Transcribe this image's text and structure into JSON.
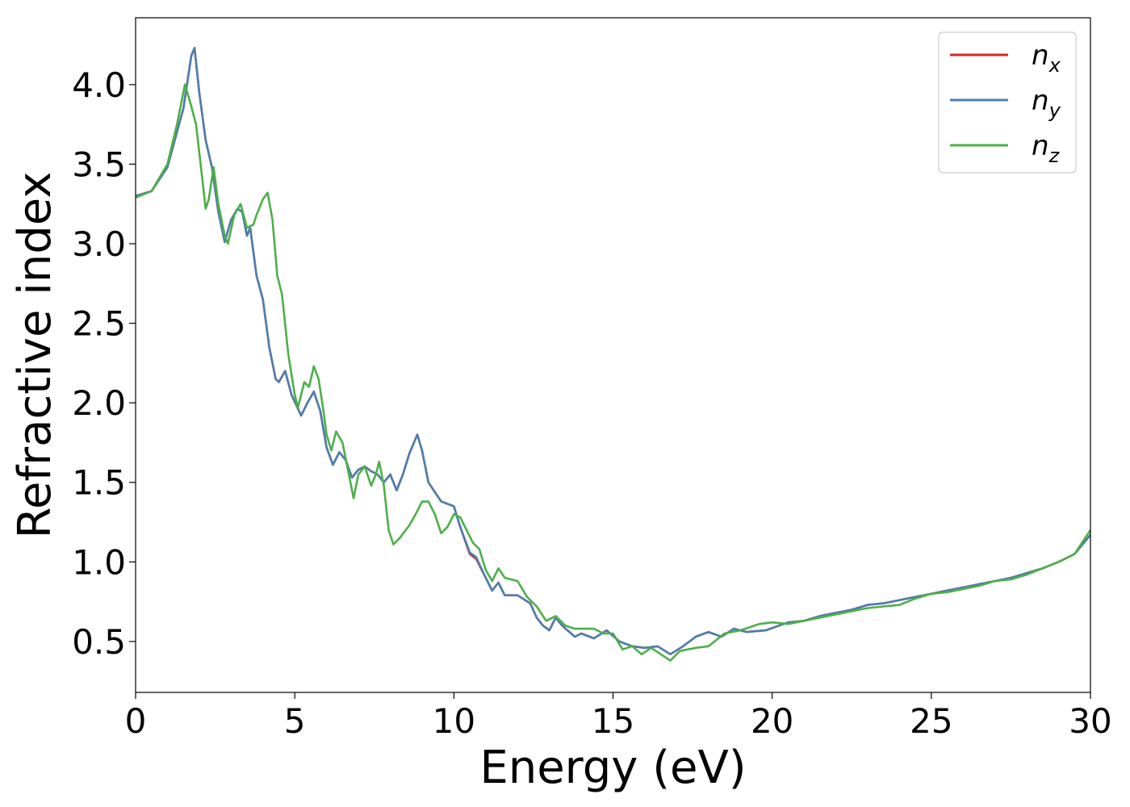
{
  "chart_data": {
    "type": "line",
    "title": "",
    "xlabel": "Energy (eV)",
    "ylabel": "Refractive index",
    "xlim": [
      0,
      30
    ],
    "ylim": [
      0.18,
      4.42
    ],
    "xticks": [
      0,
      5,
      10,
      15,
      20,
      25,
      30
    ],
    "yticks": [
      0.5,
      1.0,
      1.5,
      2.0,
      2.5,
      3.0,
      3.5,
      4.0
    ],
    "xtick_labels": [
      "0",
      "5",
      "10",
      "15",
      "20",
      "25",
      "30"
    ],
    "ytick_labels": [
      "0.5",
      "1.0",
      "1.5",
      "2.0",
      "2.5",
      "3.0",
      "3.5",
      "4.0"
    ],
    "grid": false,
    "legend": {
      "position": "top-right"
    },
    "series": [
      {
        "name": "n_x",
        "base": "n",
        "sub": "x",
        "color": "#d62728",
        "points": [
          [
            0,
            3.3
          ],
          [
            0.5,
            3.33
          ],
          [
            1.0,
            3.48
          ],
          [
            1.5,
            3.85
          ],
          [
            1.75,
            4.18
          ],
          [
            1.85,
            4.23
          ],
          [
            2.0,
            3.95
          ],
          [
            2.2,
            3.65
          ],
          [
            2.4,
            3.48
          ],
          [
            2.6,
            3.2
          ],
          [
            2.8,
            3.01
          ],
          [
            3.0,
            3.15
          ],
          [
            3.2,
            3.22
          ],
          [
            3.35,
            3.2
          ],
          [
            3.5,
            3.05
          ],
          [
            3.6,
            3.1
          ],
          [
            3.8,
            2.8
          ],
          [
            4.0,
            2.65
          ],
          [
            4.2,
            2.35
          ],
          [
            4.4,
            2.15
          ],
          [
            4.5,
            2.13
          ],
          [
            4.7,
            2.2
          ],
          [
            4.9,
            2.05
          ],
          [
            5.2,
            1.92
          ],
          [
            5.4,
            2.0
          ],
          [
            5.6,
            2.07
          ],
          [
            5.8,
            1.95
          ],
          [
            6.0,
            1.72
          ],
          [
            6.2,
            1.61
          ],
          [
            6.4,
            1.69
          ],
          [
            6.6,
            1.64
          ],
          [
            6.8,
            1.53
          ],
          [
            7.0,
            1.58
          ],
          [
            7.2,
            1.6
          ],
          [
            7.4,
            1.57
          ],
          [
            7.6,
            1.55
          ],
          [
            7.8,
            1.5
          ],
          [
            8.0,
            1.55
          ],
          [
            8.2,
            1.45
          ],
          [
            8.4,
            1.55
          ],
          [
            8.6,
            1.68
          ],
          [
            8.85,
            1.8
          ],
          [
            9.0,
            1.7
          ],
          [
            9.2,
            1.5
          ],
          [
            9.4,
            1.44
          ],
          [
            9.6,
            1.38
          ],
          [
            10.0,
            1.35
          ],
          [
            10.2,
            1.22
          ],
          [
            10.5,
            1.05
          ],
          [
            10.7,
            1.02
          ],
          [
            11.0,
            0.9
          ],
          [
            11.2,
            0.82
          ],
          [
            11.4,
            0.87
          ],
          [
            11.6,
            0.79
          ],
          [
            12.0,
            0.79
          ],
          [
            12.4,
            0.74
          ],
          [
            12.6,
            0.65
          ],
          [
            12.8,
            0.6
          ],
          [
            13.0,
            0.57
          ],
          [
            13.2,
            0.65
          ],
          [
            13.4,
            0.6
          ],
          [
            13.8,
            0.53
          ],
          [
            14.0,
            0.55
          ],
          [
            14.4,
            0.52
          ],
          [
            14.8,
            0.57
          ],
          [
            15.2,
            0.5
          ],
          [
            15.6,
            0.47
          ],
          [
            16.0,
            0.46
          ],
          [
            16.4,
            0.47
          ],
          [
            16.8,
            0.42
          ],
          [
            17.2,
            0.47
          ],
          [
            17.6,
            0.53
          ],
          [
            18.0,
            0.56
          ],
          [
            18.4,
            0.53
          ],
          [
            18.8,
            0.58
          ],
          [
            19.2,
            0.56
          ],
          [
            19.8,
            0.57
          ],
          [
            20.5,
            0.62
          ],
          [
            21.0,
            0.63
          ],
          [
            21.5,
            0.66
          ],
          [
            22.0,
            0.68
          ],
          [
            22.5,
            0.7
          ],
          [
            23.0,
            0.73
          ],
          [
            23.5,
            0.74
          ],
          [
            24.0,
            0.76
          ],
          [
            24.5,
            0.78
          ],
          [
            25.0,
            0.8
          ],
          [
            25.5,
            0.82
          ],
          [
            26.0,
            0.84
          ],
          [
            26.5,
            0.86
          ],
          [
            27.0,
            0.88
          ],
          [
            27.5,
            0.9
          ],
          [
            28.0,
            0.93
          ],
          [
            28.5,
            0.96
          ],
          [
            29.0,
            1.0
          ],
          [
            29.5,
            1.05
          ],
          [
            30.0,
            1.17
          ]
        ]
      },
      {
        "name": "n_y",
        "base": "n",
        "sub": "y",
        "color": "#4c7fad",
        "points": [
          [
            0,
            3.3
          ],
          [
            0.5,
            3.33
          ],
          [
            1.0,
            3.48
          ],
          [
            1.5,
            3.85
          ],
          [
            1.75,
            4.18
          ],
          [
            1.85,
            4.23
          ],
          [
            2.0,
            3.95
          ],
          [
            2.2,
            3.65
          ],
          [
            2.4,
            3.48
          ],
          [
            2.6,
            3.2
          ],
          [
            2.8,
            3.01
          ],
          [
            3.0,
            3.15
          ],
          [
            3.2,
            3.22
          ],
          [
            3.35,
            3.2
          ],
          [
            3.5,
            3.05
          ],
          [
            3.6,
            3.1
          ],
          [
            3.8,
            2.8
          ],
          [
            4.0,
            2.65
          ],
          [
            4.2,
            2.35
          ],
          [
            4.4,
            2.15
          ],
          [
            4.5,
            2.13
          ],
          [
            4.7,
            2.2
          ],
          [
            4.9,
            2.05
          ],
          [
            5.2,
            1.92
          ],
          [
            5.4,
            2.0
          ],
          [
            5.6,
            2.07
          ],
          [
            5.8,
            1.95
          ],
          [
            6.0,
            1.72
          ],
          [
            6.2,
            1.61
          ],
          [
            6.4,
            1.69
          ],
          [
            6.6,
            1.64
          ],
          [
            6.8,
            1.53
          ],
          [
            7.0,
            1.58
          ],
          [
            7.2,
            1.6
          ],
          [
            7.4,
            1.57
          ],
          [
            7.6,
            1.55
          ],
          [
            7.8,
            1.5
          ],
          [
            8.0,
            1.55
          ],
          [
            8.2,
            1.45
          ],
          [
            8.4,
            1.55
          ],
          [
            8.6,
            1.68
          ],
          [
            8.85,
            1.8
          ],
          [
            9.0,
            1.7
          ],
          [
            9.2,
            1.5
          ],
          [
            9.4,
            1.44
          ],
          [
            9.6,
            1.38
          ],
          [
            10.0,
            1.35
          ],
          [
            10.2,
            1.22
          ],
          [
            10.5,
            1.06
          ],
          [
            10.7,
            1.03
          ],
          [
            11.0,
            0.9
          ],
          [
            11.2,
            0.82
          ],
          [
            11.4,
            0.87
          ],
          [
            11.6,
            0.79
          ],
          [
            12.0,
            0.79
          ],
          [
            12.4,
            0.74
          ],
          [
            12.6,
            0.65
          ],
          [
            12.8,
            0.6
          ],
          [
            13.0,
            0.57
          ],
          [
            13.2,
            0.65
          ],
          [
            13.4,
            0.6
          ],
          [
            13.8,
            0.53
          ],
          [
            14.0,
            0.55
          ],
          [
            14.4,
            0.52
          ],
          [
            14.8,
            0.57
          ],
          [
            15.2,
            0.5
          ],
          [
            15.6,
            0.47
          ],
          [
            16.0,
            0.46
          ],
          [
            16.4,
            0.47
          ],
          [
            16.8,
            0.42
          ],
          [
            17.2,
            0.47
          ],
          [
            17.6,
            0.53
          ],
          [
            18.0,
            0.56
          ],
          [
            18.4,
            0.53
          ],
          [
            18.8,
            0.58
          ],
          [
            19.2,
            0.56
          ],
          [
            19.8,
            0.57
          ],
          [
            20.5,
            0.62
          ],
          [
            21.0,
            0.63
          ],
          [
            21.5,
            0.66
          ],
          [
            22.0,
            0.68
          ],
          [
            22.5,
            0.7
          ],
          [
            23.0,
            0.73
          ],
          [
            23.5,
            0.74
          ],
          [
            24.0,
            0.76
          ],
          [
            24.5,
            0.78
          ],
          [
            25.0,
            0.8
          ],
          [
            25.5,
            0.82
          ],
          [
            26.0,
            0.84
          ],
          [
            26.5,
            0.86
          ],
          [
            27.0,
            0.88
          ],
          [
            27.5,
            0.9
          ],
          [
            28.0,
            0.93
          ],
          [
            28.5,
            0.96
          ],
          [
            29.0,
            1.0
          ],
          [
            29.5,
            1.05
          ],
          [
            30.0,
            1.17
          ]
        ]
      },
      {
        "name": "n_z",
        "base": "n",
        "sub": "z",
        "color": "#4daf4a",
        "points": [
          [
            0,
            3.29
          ],
          [
            0.5,
            3.33
          ],
          [
            1.0,
            3.5
          ],
          [
            1.3,
            3.75
          ],
          [
            1.55,
            4.0
          ],
          [
            1.7,
            3.9
          ],
          [
            1.9,
            3.75
          ],
          [
            2.1,
            3.4
          ],
          [
            2.2,
            3.22
          ],
          [
            2.3,
            3.28
          ],
          [
            2.45,
            3.48
          ],
          [
            2.6,
            3.25
          ],
          [
            2.8,
            3.05
          ],
          [
            2.9,
            3.0
          ],
          [
            3.1,
            3.18
          ],
          [
            3.3,
            3.25
          ],
          [
            3.5,
            3.1
          ],
          [
            3.7,
            3.12
          ],
          [
            3.8,
            3.18
          ],
          [
            4.0,
            3.28
          ],
          [
            4.15,
            3.32
          ],
          [
            4.3,
            3.15
          ],
          [
            4.45,
            2.8
          ],
          [
            4.6,
            2.68
          ],
          [
            4.8,
            2.3
          ],
          [
            5.0,
            2.05
          ],
          [
            5.1,
            1.97
          ],
          [
            5.3,
            2.13
          ],
          [
            5.45,
            2.1
          ],
          [
            5.6,
            2.23
          ],
          [
            5.75,
            2.15
          ],
          [
            5.9,
            1.95
          ],
          [
            6.0,
            1.8
          ],
          [
            6.15,
            1.7
          ],
          [
            6.3,
            1.82
          ],
          [
            6.5,
            1.75
          ],
          [
            6.7,
            1.55
          ],
          [
            6.85,
            1.4
          ],
          [
            7.0,
            1.55
          ],
          [
            7.2,
            1.6
          ],
          [
            7.4,
            1.48
          ],
          [
            7.55,
            1.55
          ],
          [
            7.65,
            1.63
          ],
          [
            7.8,
            1.48
          ],
          [
            7.95,
            1.2
          ],
          [
            8.1,
            1.11
          ],
          [
            8.3,
            1.15
          ],
          [
            8.6,
            1.23
          ],
          [
            8.8,
            1.3
          ],
          [
            9.0,
            1.38
          ],
          [
            9.2,
            1.38
          ],
          [
            9.4,
            1.3
          ],
          [
            9.6,
            1.18
          ],
          [
            9.8,
            1.22
          ],
          [
            10.0,
            1.3
          ],
          [
            10.2,
            1.28
          ],
          [
            10.4,
            1.2
          ],
          [
            10.6,
            1.12
          ],
          [
            10.8,
            1.08
          ],
          [
            11.0,
            0.95
          ],
          [
            11.2,
            0.88
          ],
          [
            11.4,
            0.96
          ],
          [
            11.6,
            0.9
          ],
          [
            11.8,
            0.89
          ],
          [
            12.0,
            0.88
          ],
          [
            12.3,
            0.78
          ],
          [
            12.6,
            0.72
          ],
          [
            12.9,
            0.63
          ],
          [
            13.2,
            0.66
          ],
          [
            13.5,
            0.6
          ],
          [
            13.8,
            0.58
          ],
          [
            14.1,
            0.58
          ],
          [
            14.4,
            0.58
          ],
          [
            14.7,
            0.55
          ],
          [
            15.0,
            0.55
          ],
          [
            15.3,
            0.45
          ],
          [
            15.6,
            0.47
          ],
          [
            15.9,
            0.42
          ],
          [
            16.2,
            0.46
          ],
          [
            16.5,
            0.42
          ],
          [
            16.8,
            0.38
          ],
          [
            17.1,
            0.44
          ],
          [
            17.6,
            0.46
          ],
          [
            18.0,
            0.47
          ],
          [
            18.5,
            0.55
          ],
          [
            19.0,
            0.57
          ],
          [
            19.6,
            0.61
          ],
          [
            20.0,
            0.62
          ],
          [
            20.5,
            0.61
          ],
          [
            21.0,
            0.63
          ],
          [
            21.5,
            0.65
          ],
          [
            22.0,
            0.67
          ],
          [
            22.5,
            0.69
          ],
          [
            23.0,
            0.71
          ],
          [
            23.5,
            0.72
          ],
          [
            24.0,
            0.73
          ],
          [
            24.5,
            0.77
          ],
          [
            25.0,
            0.8
          ],
          [
            25.5,
            0.81
          ],
          [
            26.0,
            0.83
          ],
          [
            26.5,
            0.85
          ],
          [
            27.0,
            0.88
          ],
          [
            27.5,
            0.89
          ],
          [
            28.0,
            0.92
          ],
          [
            28.5,
            0.96
          ],
          [
            29.0,
            1.0
          ],
          [
            29.5,
            1.05
          ],
          [
            30.0,
            1.2
          ]
        ]
      }
    ]
  }
}
